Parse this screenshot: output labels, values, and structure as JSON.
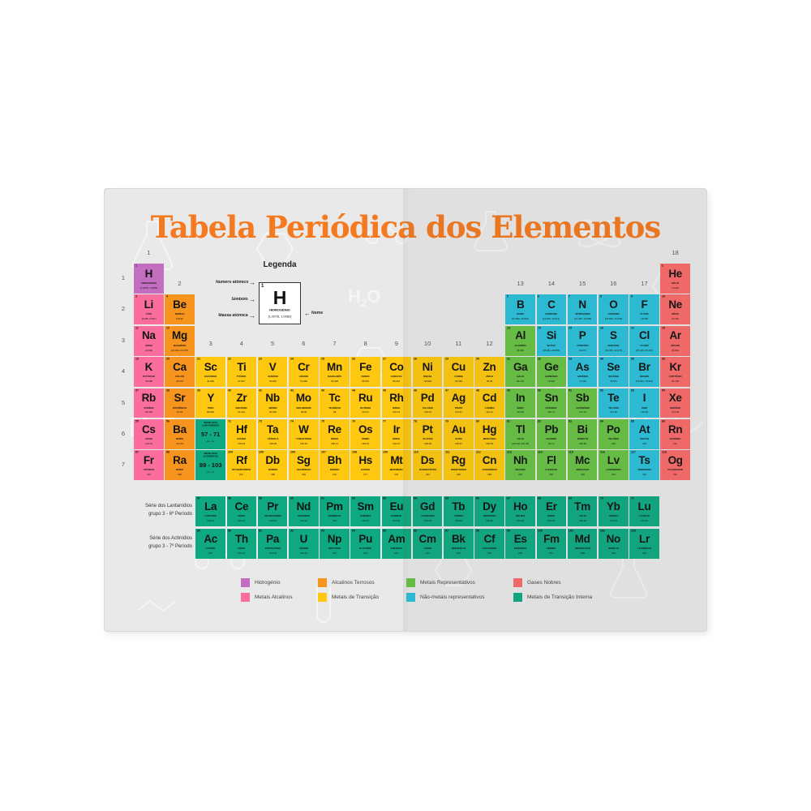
{
  "title": "Tabela Periódica dos Elementos",
  "colors": {
    "title": "#f4791f",
    "hydrogen": "#c46ec2",
    "alkali": "#fa6d9d",
    "alkaline": "#f7941e",
    "transition": "#fdc80f",
    "repmetal": "#68c244",
    "nonmetal": "#2ac0d9",
    "noble": "#f96b6b",
    "inner": "#0fa981"
  },
  "legend": {
    "heading": "Legenda",
    "numero_label": "Número atômico",
    "simbolo_label": "Símbolo",
    "massa_label": "Massa atômica",
    "nome_label": "Nome",
    "arrow_right": "→",
    "arrow_left": "←",
    "sample": {
      "n": "1",
      "sym": "H",
      "name": "HIDROGÉNIO",
      "mass": "[1.0078, 1.0082]"
    }
  },
  "groups": [
    {
      "label": "1",
      "col": 1,
      "level": "top"
    },
    {
      "label": "2",
      "col": 2,
      "level": "mid"
    },
    {
      "label": "3",
      "col": 3,
      "level": "low"
    },
    {
      "label": "4",
      "col": 4,
      "level": "low"
    },
    {
      "label": "5",
      "col": 5,
      "level": "low"
    },
    {
      "label": "6",
      "col": 6,
      "level": "low"
    },
    {
      "label": "7",
      "col": 7,
      "level": "low"
    },
    {
      "label": "8",
      "col": 8,
      "level": "low"
    },
    {
      "label": "9",
      "col": 9,
      "level": "low"
    },
    {
      "label": "10",
      "col": 10,
      "level": "low"
    },
    {
      "label": "11",
      "col": 11,
      "level": "low"
    },
    {
      "label": "12",
      "col": 12,
      "level": "low"
    },
    {
      "label": "13",
      "col": 13,
      "level": "mid"
    },
    {
      "label": "14",
      "col": 14,
      "level": "mid"
    },
    {
      "label": "15",
      "col": 15,
      "level": "mid"
    },
    {
      "label": "16",
      "col": 16,
      "level": "mid"
    },
    {
      "label": "17",
      "col": 17,
      "level": "mid"
    },
    {
      "label": "18",
      "col": 18,
      "level": "top"
    }
  ],
  "periods": [
    "1",
    "2",
    "3",
    "4",
    "5",
    "6",
    "7"
  ],
  "series_labels": [
    {
      "line1": "Série dos Lantanídios",
      "line2": "grupo 3 - 6º Período"
    },
    {
      "line1": "Série dos Actinídios",
      "line2": "grupo 3 - 7º Período"
    }
  ],
  "placeholders": [
    {
      "r": 6,
      "g": 3,
      "l1": "SÉRIE DOS",
      "l2": "LANTANÍDEOS",
      "range": "57 - 71",
      "span": "La - Lu",
      "c": "inner"
    },
    {
      "r": 7,
      "g": 3,
      "l1": "SÉRIE DOS",
      "l2": "ACTINÍDEOS",
      "range": "89 - 103",
      "span": "Ac - Lr",
      "c": "inner"
    }
  ],
  "category_legend": [
    {
      "label": "Hidrogénio",
      "cat": "hydrogen",
      "column": 0,
      "line": 0
    },
    {
      "label": "Alcalinos Terrosos",
      "cat": "alkaline",
      "column": 1,
      "line": 0
    },
    {
      "label": "Metais Representativos",
      "cat": "repmetal",
      "column": 2,
      "line": 0
    },
    {
      "label": "Gases Nobres",
      "cat": "noble",
      "column": 3,
      "line": 0
    },
    {
      "label": "Metais Alcalinos",
      "cat": "alkali",
      "column": 0,
      "line": 1
    },
    {
      "label": "Metais de Transição",
      "cat": "transition",
      "column": 1,
      "line": 1
    },
    {
      "label": "Não-metais representativos",
      "cat": "nonmetal",
      "column": 2,
      "line": 1
    },
    {
      "label": "Metais de Transição Interna",
      "cat": "inner",
      "column": 3,
      "line": 1
    }
  ],
  "elements": [
    {
      "n": 1,
      "s": "H",
      "nm": "HIDROGÉNIO",
      "m": "[1.0078, 1.0082]",
      "c": "hydrogen",
      "r": 1,
      "g": 1
    },
    {
      "n": 2,
      "s": "He",
      "nm": "HÉLIO",
      "m": "4.0026",
      "c": "noble",
      "r": 1,
      "g": 18
    },
    {
      "n": 3,
      "s": "Li",
      "nm": "LÍTIO",
      "m": "[6.938, 6.997]",
      "c": "alkali",
      "r": 2,
      "g": 1
    },
    {
      "n": 4,
      "s": "Be",
      "nm": "BERÍLIO",
      "m": "9.0122",
      "c": "alkaline",
      "r": 2,
      "g": 2
    },
    {
      "n": 5,
      "s": "B",
      "nm": "BORO",
      "m": "[10.806, 10.821]",
      "c": "nonmetal",
      "r": 2,
      "g": 13
    },
    {
      "n": 6,
      "s": "C",
      "nm": "CARBONO",
      "m": "[12.009, 12.012]",
      "c": "nonmetal",
      "r": 2,
      "g": 14
    },
    {
      "n": 7,
      "s": "N",
      "nm": "NITROGÉNIO",
      "m": "[14.006, 14.008]",
      "c": "nonmetal",
      "r": 2,
      "g": 15
    },
    {
      "n": 8,
      "s": "O",
      "nm": "OXIGÉNIO",
      "m": "[15.999, 16.000]",
      "c": "nonmetal",
      "r": 2,
      "g": 16
    },
    {
      "n": 9,
      "s": "F",
      "nm": "FLÚOR",
      "m": "18.998",
      "c": "nonmetal",
      "r": 2,
      "g": 17
    },
    {
      "n": 10,
      "s": "Ne",
      "nm": "NÉON",
      "m": "20.180",
      "c": "noble",
      "r": 2,
      "g": 18
    },
    {
      "n": 11,
      "s": "Na",
      "nm": "SÓDIO",
      "m": "22.990",
      "c": "alkali",
      "r": 3,
      "g": 1
    },
    {
      "n": 12,
      "s": "Mg",
      "nm": "MAGNÉSIO",
      "m": "[24.304, 24.307]",
      "c": "alkaline",
      "r": 3,
      "g": 2
    },
    {
      "n": 13,
      "s": "Al",
      "nm": "ALUMÍNIO",
      "m": "26.982",
      "c": "repmetal",
      "r": 3,
      "g": 13
    },
    {
      "n": 14,
      "s": "Si",
      "nm": "SILÍCIO",
      "m": "[28.084, 28.086]",
      "c": "nonmetal",
      "r": 3,
      "g": 14
    },
    {
      "n": 15,
      "s": "P",
      "nm": "FÓSFORO",
      "m": "30.974",
      "c": "nonmetal",
      "r": 3,
      "g": 15
    },
    {
      "n": 16,
      "s": "S",
      "nm": "ENXOFRE",
      "m": "[32.059, 32.076]",
      "c": "nonmetal",
      "r": 3,
      "g": 16
    },
    {
      "n": 17,
      "s": "Cl",
      "nm": "CLORO",
      "m": "[35.446, 35.457]",
      "c": "nonmetal",
      "r": 3,
      "g": 17
    },
    {
      "n": 18,
      "s": "Ar",
      "nm": "ÁRGON",
      "m": "39.948",
      "c": "noble",
      "r": 3,
      "g": 18
    },
    {
      "n": 19,
      "s": "K",
      "nm": "POTÁSSIO",
      "m": "39.098",
      "c": "alkali",
      "r": 4,
      "g": 1
    },
    {
      "n": 20,
      "s": "Ca",
      "nm": "CÁLCIO",
      "m": "40.078",
      "c": "alkaline",
      "r": 4,
      "g": 2
    },
    {
      "n": 21,
      "s": "Sc",
      "nm": "ESCÂNDIO",
      "m": "44.956",
      "c": "transition",
      "r": 4,
      "g": 3
    },
    {
      "n": 22,
      "s": "Ti",
      "nm": "TITÂNIO",
      "m": "47.867",
      "c": "transition",
      "r": 4,
      "g": 4
    },
    {
      "n": 23,
      "s": "V",
      "nm": "VANÁDIO",
      "m": "50.942",
      "c": "transition",
      "r": 4,
      "g": 5
    },
    {
      "n": 24,
      "s": "Cr",
      "nm": "CROMO",
      "m": "51.996",
      "c": "transition",
      "r": 4,
      "g": 6
    },
    {
      "n": 25,
      "s": "Mn",
      "nm": "MANGANÊS",
      "m": "54.938",
      "c": "transition",
      "r": 4,
      "g": 7
    },
    {
      "n": 26,
      "s": "Fe",
      "nm": "FERRO",
      "m": "55.845",
      "c": "transition",
      "r": 4,
      "g": 8
    },
    {
      "n": 27,
      "s": "Co",
      "nm": "COBALTO",
      "m": "58.933",
      "c": "transition",
      "r": 4,
      "g": 9
    },
    {
      "n": 28,
      "s": "Ni",
      "nm": "NÍQUEL",
      "m": "58.693",
      "c": "transition",
      "r": 4,
      "g": 10
    },
    {
      "n": 29,
      "s": "Cu",
      "nm": "COBRE",
      "m": "63.546",
      "c": "transition",
      "r": 4,
      "g": 11
    },
    {
      "n": 30,
      "s": "Zn",
      "nm": "ZINCO",
      "m": "65.38",
      "c": "transition",
      "r": 4,
      "g": 12
    },
    {
      "n": 31,
      "s": "Ga",
      "nm": "GÁLIO",
      "m": "69.723",
      "c": "repmetal",
      "r": 4,
      "g": 13
    },
    {
      "n": 32,
      "s": "Ge",
      "nm": "GERMÂNIO",
      "m": "72.630",
      "c": "repmetal",
      "r": 4,
      "g": 14
    },
    {
      "n": 33,
      "s": "As",
      "nm": "ARSÉNIO",
      "m": "74.922",
      "c": "nonmetal",
      "r": 4,
      "g": 15
    },
    {
      "n": 34,
      "s": "Se",
      "nm": "SELÉNIO",
      "m": "78.971",
      "c": "nonmetal",
      "r": 4,
      "g": 16
    },
    {
      "n": 35,
      "s": "Br",
      "nm": "BROMO",
      "m": "[79.901, 79.907]",
      "c": "nonmetal",
      "r": 4,
      "g": 17
    },
    {
      "n": 36,
      "s": "Kr",
      "nm": "CRIPTÔNIO",
      "m": "83.798",
      "c": "noble",
      "r": 4,
      "g": 18
    },
    {
      "n": 37,
      "s": "Rb",
      "nm": "RUBÍDIO",
      "m": "85.468",
      "c": "alkali",
      "r": 5,
      "g": 1
    },
    {
      "n": 38,
      "s": "Sr",
      "nm": "ESTRÔNCIO",
      "m": "87.62",
      "c": "alkaline",
      "r": 5,
      "g": 2
    },
    {
      "n": 39,
      "s": "Y",
      "nm": "ÍTRIO",
      "m": "88.906",
      "c": "transition",
      "r": 5,
      "g": 3
    },
    {
      "n": 40,
      "s": "Zr",
      "nm": "ZIRCÓNIO",
      "m": "91.224",
      "c": "transition",
      "r": 5,
      "g": 4
    },
    {
      "n": 41,
      "s": "Nb",
      "nm": "NIÓBIO",
      "m": "92.906",
      "c": "transition",
      "r": 5,
      "g": 5
    },
    {
      "n": 42,
      "s": "Mo",
      "nm": "MOLIBDÉNIO",
      "m": "95.95",
      "c": "transition",
      "r": 5,
      "g": 6
    },
    {
      "n": 43,
      "s": "Tc",
      "nm": "TECNÉCIO",
      "m": "98",
      "c": "transition",
      "r": 5,
      "g": 7
    },
    {
      "n": 44,
      "s": "Ru",
      "nm": "RUTÉNIO",
      "m": "101.07",
      "c": "transition",
      "r": 5,
      "g": 8
    },
    {
      "n": 45,
      "s": "Rh",
      "nm": "RÓDIO",
      "m": "102.91",
      "c": "transition",
      "r": 5,
      "g": 9
    },
    {
      "n": 46,
      "s": "Pd",
      "nm": "PALÁDIO",
      "m": "106.42",
      "c": "transition",
      "r": 5,
      "g": 10
    },
    {
      "n": 47,
      "s": "Ag",
      "nm": "PRATA",
      "m": "107.87",
      "c": "transition",
      "r": 5,
      "g": 11
    },
    {
      "n": 48,
      "s": "Cd",
      "nm": "CÁDMIO",
      "m": "112.41",
      "c": "transition",
      "r": 5,
      "g": 12
    },
    {
      "n": 49,
      "s": "In",
      "nm": "ÍNDIO",
      "m": "114.82",
      "c": "repmetal",
      "r": 5,
      "g": 13
    },
    {
      "n": 50,
      "s": "Sn",
      "nm": "ESTANHO",
      "m": "118.71",
      "c": "repmetal",
      "r": 5,
      "g": 14
    },
    {
      "n": 51,
      "s": "Sb",
      "nm": "ANTIMÓNIO",
      "m": "121.76",
      "c": "repmetal",
      "r": 5,
      "g": 15
    },
    {
      "n": 52,
      "s": "Te",
      "nm": "TELÚRIO",
      "m": "127.60",
      "c": "nonmetal",
      "r": 5,
      "g": 16
    },
    {
      "n": 53,
      "s": "I",
      "nm": "IODO",
      "m": "126.90",
      "c": "nonmetal",
      "r": 5,
      "g": 17
    },
    {
      "n": 54,
      "s": "Xe",
      "nm": "XENÓNIO",
      "m": "131.29",
      "c": "noble",
      "r": 5,
      "g": 18
    },
    {
      "n": 55,
      "s": "Cs",
      "nm": "CÉSIO",
      "m": "132.91",
      "c": "alkali",
      "r": 6,
      "g": 1
    },
    {
      "n": 56,
      "s": "Ba",
      "nm": "BÁRIO",
      "m": "137.33",
      "c": "alkaline",
      "r": 6,
      "g": 2
    },
    {
      "n": 72,
      "s": "Hf",
      "nm": "HÁFNIO",
      "m": "178.49",
      "c": "transition",
      "r": 6,
      "g": 4
    },
    {
      "n": 73,
      "s": "Ta",
      "nm": "TÂNTALO",
      "m": "180.95",
      "c": "transition",
      "r": 6,
      "g": 5
    },
    {
      "n": 74,
      "s": "W",
      "nm": "TUNGSTÉNIO",
      "m": "183.84",
      "c": "transition",
      "r": 6,
      "g": 6
    },
    {
      "n": 75,
      "s": "Re",
      "nm": "RÉNIO",
      "m": "186.21",
      "c": "transition",
      "r": 6,
      "g": 7
    },
    {
      "n": 76,
      "s": "Os",
      "nm": "ÓSMIO",
      "m": "190.23",
      "c": "transition",
      "r": 6,
      "g": 8
    },
    {
      "n": 77,
      "s": "Ir",
      "nm": "IRÍDIO",
      "m": "192.22",
      "c": "transition",
      "r": 6,
      "g": 9
    },
    {
      "n": 78,
      "s": "Pt",
      "nm": "PLATINA",
      "m": "195.08",
      "c": "transition",
      "r": 6,
      "g": 10
    },
    {
      "n": 79,
      "s": "Au",
      "nm": "OURO",
      "m": "196.97",
      "c": "transition",
      "r": 6,
      "g": 11
    },
    {
      "n": 80,
      "s": "Hg",
      "nm": "MERCÚRIO",
      "m": "200.59",
      "c": "transition",
      "r": 6,
      "g": 12
    },
    {
      "n": 81,
      "s": "Tl",
      "nm": "TÁLIO",
      "m": "[204.38, 204.39]",
      "c": "repmetal",
      "r": 6,
      "g": 13
    },
    {
      "n": 82,
      "s": "Pb",
      "nm": "CHUMBO",
      "m": "207.2",
      "c": "repmetal",
      "r": 6,
      "g": 14
    },
    {
      "n": 83,
      "s": "Bi",
      "nm": "BISMUTO",
      "m": "208.98",
      "c": "repmetal",
      "r": 6,
      "g": 15
    },
    {
      "n": 84,
      "s": "Po",
      "nm": "POLÓNIO",
      "m": "209",
      "c": "repmetal",
      "r": 6,
      "g": 16
    },
    {
      "n": 85,
      "s": "At",
      "nm": "ÁSTATO",
      "m": "210",
      "c": "nonmetal",
      "r": 6,
      "g": 17
    },
    {
      "n": 86,
      "s": "Rn",
      "nm": "RADÓNIO",
      "m": "222",
      "c": "noble",
      "r": 6,
      "g": 18
    },
    {
      "n": 87,
      "s": "Fr",
      "nm": "FRÂNCIO",
      "m": "223",
      "c": "alkali",
      "r": 7,
      "g": 1
    },
    {
      "n": 88,
      "s": "Ra",
      "nm": "RÁDIO",
      "m": "226",
      "c": "alkaline",
      "r": 7,
      "g": 2
    },
    {
      "n": 104,
      "s": "Rf",
      "nm": "RUTHERFÓRDIO",
      "m": "267",
      "c": "transition",
      "r": 7,
      "g": 4
    },
    {
      "n": 105,
      "s": "Db",
      "nm": "DÚBNIO",
      "m": "268",
      "c": "transition",
      "r": 7,
      "g": 5
    },
    {
      "n": 106,
      "s": "Sg",
      "nm": "SEABÓRGIO",
      "m": "269",
      "c": "transition",
      "r": 7,
      "g": 6
    },
    {
      "n": 107,
      "s": "Bh",
      "nm": "BÓHRIO",
      "m": "270",
      "c": "transition",
      "r": 7,
      "g": 7
    },
    {
      "n": 108,
      "s": "Hs",
      "nm": "HÁSSIO",
      "m": "277",
      "c": "transition",
      "r": 7,
      "g": 8
    },
    {
      "n": 109,
      "s": "Mt",
      "nm": "MEITNÉRIO",
      "m": "278",
      "c": "transition",
      "r": 7,
      "g": 9
    },
    {
      "n": 110,
      "s": "Ds",
      "nm": "DARMSTÁDTIO",
      "m": "281",
      "c": "transition",
      "r": 7,
      "g": 10
    },
    {
      "n": 111,
      "s": "Rg",
      "nm": "ROENTGÉNIO",
      "m": "282",
      "c": "transition",
      "r": 7,
      "g": 11
    },
    {
      "n": 112,
      "s": "Cn",
      "nm": "COPERNÍCIO",
      "m": "285",
      "c": "transition",
      "r": 7,
      "g": 12
    },
    {
      "n": 113,
      "s": "Nh",
      "nm": "NIHÓNIO",
      "m": "286",
      "c": "repmetal",
      "r": 7,
      "g": 13
    },
    {
      "n": 114,
      "s": "Fl",
      "nm": "FLERÓVIO",
      "m": "289",
      "c": "repmetal",
      "r": 7,
      "g": 14
    },
    {
      "n": 115,
      "s": "Mc",
      "nm": "MOSCÓVIO",
      "m": "290",
      "c": "repmetal",
      "r": 7,
      "g": 15
    },
    {
      "n": 116,
      "s": "Lv",
      "nm": "LIVERMÓRIO",
      "m": "293",
      "c": "repmetal",
      "r": 7,
      "g": 16
    },
    {
      "n": 117,
      "s": "Ts",
      "nm": "TENESSINO",
      "m": "294",
      "c": "nonmetal",
      "r": 7,
      "g": 17
    },
    {
      "n": 118,
      "s": "Og",
      "nm": "OGANESSON",
      "m": "294",
      "c": "noble",
      "r": 7,
      "g": 18
    },
    {
      "n": 57,
      "s": "La",
      "nm": "LANTÂNIO",
      "m": "138.91",
      "c": "inner",
      "r": 8,
      "g": 3
    },
    {
      "n": 58,
      "s": "Ce",
      "nm": "CÉRIO",
      "m": "140.12",
      "c": "inner",
      "r": 8,
      "g": 4
    },
    {
      "n": 59,
      "s": "Pr",
      "nm": "PRASEODÍMIO",
      "m": "140.91",
      "c": "inner",
      "r": 8,
      "g": 5
    },
    {
      "n": 60,
      "s": "Nd",
      "nm": "NEODÍMIO",
      "m": "144.24",
      "c": "inner",
      "r": 8,
      "g": 6
    },
    {
      "n": 61,
      "s": "Pm",
      "nm": "PROMÉCIO",
      "m": "145",
      "c": "inner",
      "r": 8,
      "g": 7
    },
    {
      "n": 62,
      "s": "Sm",
      "nm": "SAMÁRIO",
      "m": "150.36",
      "c": "inner",
      "r": 8,
      "g": 8
    },
    {
      "n": 63,
      "s": "Eu",
      "nm": "EURÓPIO",
      "m": "151.96",
      "c": "inner",
      "r": 8,
      "g": 9
    },
    {
      "n": 64,
      "s": "Gd",
      "nm": "GADOLÍNIO",
      "m": "157.25",
      "c": "inner",
      "r": 8,
      "g": 10
    },
    {
      "n": 65,
      "s": "Tb",
      "nm": "TÉRBIO",
      "m": "158.93",
      "c": "inner",
      "r": 8,
      "g": 11
    },
    {
      "n": 66,
      "s": "Dy",
      "nm": "DISPRÓSIO",
      "m": "162.50",
      "c": "inner",
      "r": 8,
      "g": 12
    },
    {
      "n": 67,
      "s": "Ho",
      "nm": "HÓLMIO",
      "m": "164.93",
      "c": "inner",
      "r": 8,
      "g": 13
    },
    {
      "n": 68,
      "s": "Er",
      "nm": "ÉRBIO",
      "m": "167.26",
      "c": "inner",
      "r": 8,
      "g": 14
    },
    {
      "n": 69,
      "s": "Tm",
      "nm": "TÚLIO",
      "m": "168.93",
      "c": "inner",
      "r": 8,
      "g": 15
    },
    {
      "n": 70,
      "s": "Yb",
      "nm": "ITÉRBIO",
      "m": "173.05",
      "c": "inner",
      "r": 8,
      "g": 16
    },
    {
      "n": 71,
      "s": "Lu",
      "nm": "LUTÉCIO",
      "m": "174.97",
      "c": "inner",
      "r": 8,
      "g": 17
    },
    {
      "n": 89,
      "s": "Ac",
      "nm": "ACTÍNIO",
      "m": "227",
      "c": "inner",
      "r": 9,
      "g": 3
    },
    {
      "n": 90,
      "s": "Th",
      "nm": "TÓRIO",
      "m": "232.04",
      "c": "inner",
      "r": 9,
      "g": 4
    },
    {
      "n": 91,
      "s": "Pa",
      "nm": "PROTACTÍNIO",
      "m": "231.04",
      "c": "inner",
      "r": 9,
      "g": 5
    },
    {
      "n": 92,
      "s": "U",
      "nm": "URÂNIO",
      "m": "238.03",
      "c": "inner",
      "r": 9,
      "g": 6
    },
    {
      "n": 93,
      "s": "Np",
      "nm": "NEPTÚNIO",
      "m": "237",
      "c": "inner",
      "r": 9,
      "g": 7
    },
    {
      "n": 94,
      "s": "Pu",
      "nm": "PLUTÓNIO",
      "m": "244",
      "c": "inner",
      "r": 9,
      "g": 8
    },
    {
      "n": 95,
      "s": "Am",
      "nm": "AMERÍCIO",
      "m": "243",
      "c": "inner",
      "r": 9,
      "g": 9
    },
    {
      "n": 96,
      "s": "Cm",
      "nm": "CÚRIO",
      "m": "247",
      "c": "inner",
      "r": 9,
      "g": 10
    },
    {
      "n": 97,
      "s": "Bk",
      "nm": "BERQUÉLIO",
      "m": "247",
      "c": "inner",
      "r": 9,
      "g": 11
    },
    {
      "n": 98,
      "s": "Cf",
      "nm": "CALIFÓRNIO",
      "m": "251",
      "c": "inner",
      "r": 9,
      "g": 12
    },
    {
      "n": 99,
      "s": "Es",
      "nm": "EINSTÉNIO",
      "m": "252",
      "c": "inner",
      "r": 9,
      "g": 13
    },
    {
      "n": 100,
      "s": "Fm",
      "nm": "FÉRMIO",
      "m": "257",
      "c": "inner",
      "r": 9,
      "g": 14
    },
    {
      "n": 101,
      "s": "Md",
      "nm": "MENDELÉVIO",
      "m": "258",
      "c": "inner",
      "r": 9,
      "g": 15
    },
    {
      "n": 102,
      "s": "No",
      "nm": "NOBÉLIO",
      "m": "259",
      "c": "inner",
      "r": 9,
      "g": 16
    },
    {
      "n": 103,
      "s": "Lr",
      "nm": "LAURÊNCIO",
      "m": "262",
      "c": "inner",
      "r": 9,
      "g": 17
    }
  ]
}
